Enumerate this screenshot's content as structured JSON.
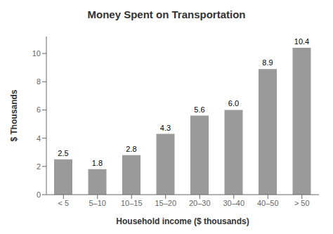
{
  "chart_data": {
    "type": "bar",
    "title": "Money Spent on Transportation",
    "categories": [
      "< 5",
      "5–10",
      "10–15",
      "15–20",
      "20–30",
      "30–40",
      "40–50",
      "> 50"
    ],
    "values": [
      2.5,
      1.8,
      2.8,
      4.3,
      5.6,
      6.0,
      8.9,
      10.4
    ],
    "value_labels": [
      "2.5",
      "1.8",
      "2.8",
      "4.3",
      "5.6",
      "6.0",
      "8.9",
      "10.4"
    ],
    "data_labels": true,
    "color": "#9a9a9a",
    "xlabel": "Household income ($ thousands)",
    "ylabel": "$ Thousands",
    "ylim": [
      0,
      11.2
    ],
    "yticks": [
      0,
      2,
      4,
      6,
      8,
      10
    ],
    "grid": false
  }
}
